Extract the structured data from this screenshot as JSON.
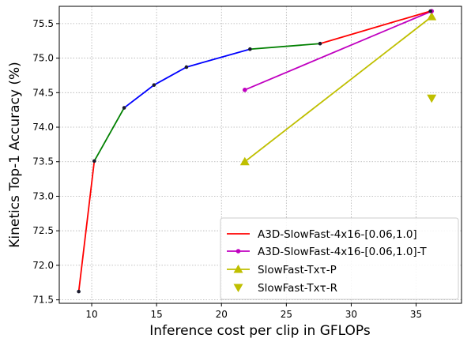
{
  "chart_data": {
    "type": "line",
    "title": "",
    "xlabel": "Inference cost per clip in GFLOPs",
    "ylabel": "Kinetics Top-1 Accuracy (%)",
    "xlim": [
      7.5,
      38.5
    ],
    "ylim": [
      71.45,
      75.75
    ],
    "xticks": [
      10,
      15,
      20,
      25,
      30,
      35
    ],
    "yticks": [
      71.5,
      72.0,
      72.5,
      73.0,
      73.5,
      74.0,
      74.5,
      75.0,
      75.5
    ],
    "xtick_labels": [
      "10",
      "15",
      "20",
      "25",
      "30",
      "35"
    ],
    "ytick_labels": [
      "71.5",
      "72.0",
      "72.5",
      "73.0",
      "73.5",
      "74.0",
      "74.5",
      "75.0",
      "75.5"
    ],
    "grid": true,
    "legend_position": "bottom-right",
    "frontier_segments": [
      {
        "color": "#ff0000",
        "x": [
          9.0,
          10.2
        ],
        "y": [
          71.62,
          73.51
        ]
      },
      {
        "color": "#008000",
        "x": [
          10.2,
          12.5
        ],
        "y": [
          73.51,
          74.28
        ]
      },
      {
        "color": "#0000ff",
        "x": [
          12.5,
          14.8,
          17.3,
          22.2
        ],
        "y": [
          74.28,
          74.61,
          74.87,
          75.13
        ]
      },
      {
        "color": "#008000",
        "x": [
          22.2,
          27.6
        ],
        "y": [
          75.13,
          75.21
        ]
      },
      {
        "color": "#ff0000",
        "x": [
          27.6,
          36.1
        ],
        "y": [
          75.21,
          75.68
        ]
      }
    ],
    "frontier_points": {
      "x": [
        9.0,
        10.2,
        12.5,
        14.8,
        17.3,
        22.2,
        27.6,
        36.1
      ],
      "y": [
        71.62,
        73.51,
        74.28,
        74.61,
        74.87,
        75.13,
        75.21,
        75.68
      ]
    },
    "series": [
      {
        "name": "A3D-SlowFast-4x16-[0.06,1.0]",
        "color": "#ff0000",
        "marker": "dot",
        "line": true,
        "x": [
          9.0,
          10.2,
          12.5,
          14.8,
          17.3,
          22.2,
          27.6,
          36.1
        ],
        "y": [
          71.62,
          73.51,
          74.28,
          74.61,
          74.87,
          75.13,
          75.21,
          75.68
        ]
      },
      {
        "name": "A3D-SlowFast-4x16-[0.06,1.0]-T",
        "color": "#c000c0",
        "marker": "circle",
        "line": true,
        "x": [
          21.8,
          36.2
        ],
        "y": [
          74.54,
          75.68
        ]
      },
      {
        "name": "SlowFast-Txτ-P",
        "color": "#bfbf00",
        "marker": "triangle-up",
        "line": true,
        "x": [
          21.8,
          36.2
        ],
        "y": [
          73.5,
          75.6
        ]
      },
      {
        "name": "SlowFast-Txτ-R",
        "color": "#bfbf00",
        "marker": "triangle-down",
        "line": false,
        "x": [
          36.2
        ],
        "y": [
          74.42
        ]
      }
    ]
  }
}
